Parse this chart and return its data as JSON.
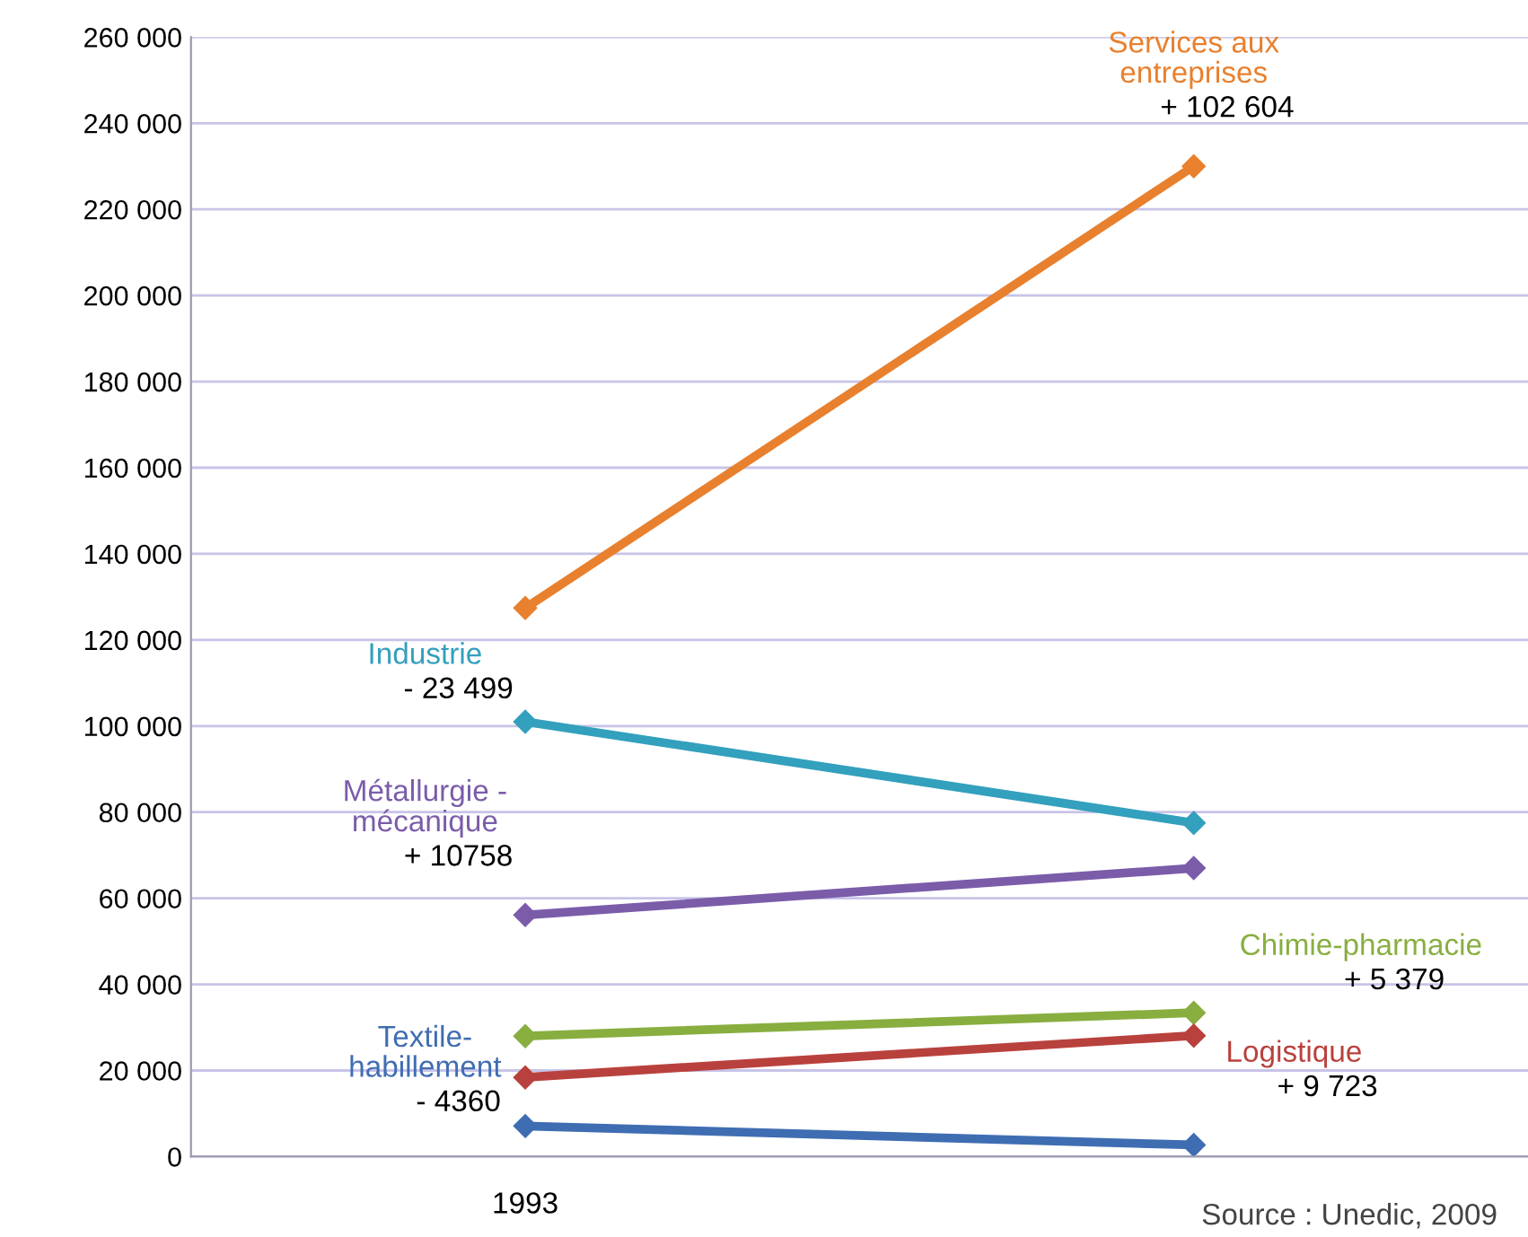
{
  "chart_data": {
    "type": "line",
    "categories": [
      "1993",
      null
    ],
    "series": [
      {
        "name": "Services aux\nentreprises",
        "color": "#e8802e",
        "values": [
          127400,
          230000
        ]
      },
      {
        "name": "Industrie",
        "color": "#33a0bd",
        "values": [
          101000,
          77500
        ]
      },
      {
        "name": "Métallurgie -\nmécanique",
        "color": "#7b5ca9",
        "values": [
          56100,
          67000
        ]
      },
      {
        "name": "Chimie-pharmacie",
        "color": "#88ae40",
        "values": [
          28000,
          33400
        ]
      },
      {
        "name": "Logistique",
        "color": "#b9413d",
        "values": [
          18400,
          28100
        ]
      },
      {
        "name": "Textile-\nhabillement",
        "color": "#3f6db2",
        "values": [
          7100,
          2700
        ]
      }
    ],
    "annotations": [
      "+ 102 604",
      "- 23 499",
      "+ 10758",
      "+ 5 379",
      "+ 9 723",
      "- 4360",
      "Source : Unedic, 2009"
    ],
    "ylim": [
      0,
      260000
    ],
    "yticks": [
      0,
      {
        "value": 20000,
        "label": "20 000"
      },
      {
        "value": 40000,
        "label": "40 000"
      },
      {
        "value": 60000,
        "label": "60 000"
      },
      {
        "value": 80000,
        "label": "80 000"
      },
      {
        "value": 100000,
        "label": "100 000"
      },
      {
        "value": 120000,
        "label": "120 000"
      },
      {
        "value": 140000,
        "label": "140 000"
      },
      {
        "value": 160000,
        "label": "160 000"
      },
      {
        "value": 180000,
        "label": "180 000"
      },
      {
        "value": 200000,
        "label": "200 000"
      },
      {
        "value": 220000,
        "label": "220 000"
      },
      {
        "value": 240000,
        "label": "240 000"
      },
      {
        "value": 260000,
        "label": "260 000"
      }
    ],
    "grid": "y",
    "marker": "diamond",
    "line_style": "solid",
    "legend": false
  }
}
